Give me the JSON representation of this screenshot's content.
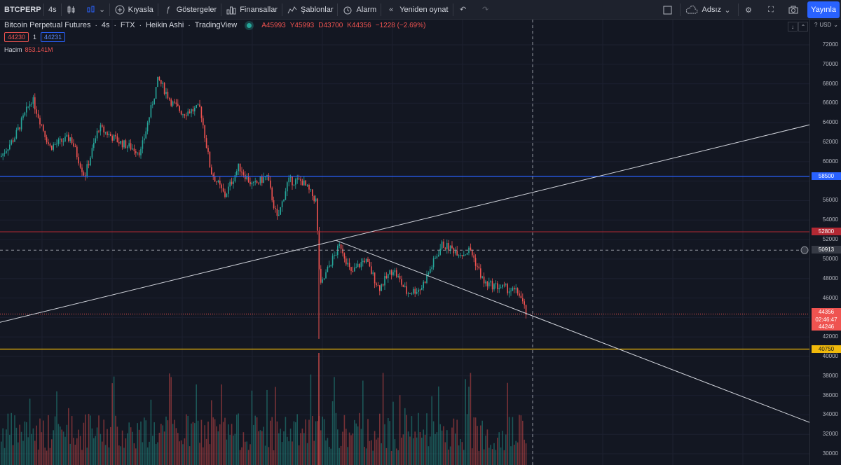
{
  "toolbar": {
    "symbol": "BTCPERP",
    "interval": "4s",
    "compare": "Kıyasla",
    "indicators": "Göstergeler",
    "financials": "Finansallar",
    "templates": "Şablonlar",
    "alarm": "Alarm",
    "replay": "Yeniden oynat",
    "layout_name": "Adsız",
    "publish": "Yayınla"
  },
  "legend": {
    "name": "Bitcoin Perpetual Futures",
    "interval": "4s",
    "exchange": "FTX",
    "chart_type": "Heikin Ashi",
    "source": "TradingView",
    "open": "A45993",
    "high": "Y45993",
    "low": "D43700",
    "close": "K44356",
    "change": "−1228 (−2.69%)"
  },
  "price_boxes": {
    "sell": "44230",
    "spread": "1",
    "buy": "44231"
  },
  "volume": {
    "label": "Hacim",
    "value": "853.141M"
  },
  "axis": {
    "currency": "USD",
    "ticks": [
      "72000",
      "70000",
      "68000",
      "66000",
      "64000",
      "62000",
      "60000",
      "56000",
      "54000",
      "52000",
      "50000",
      "48000",
      "46000",
      "42000",
      "40000",
      "38000",
      "36000",
      "34000",
      "32000",
      "30000"
    ],
    "badge_blue": "58500",
    "badge_red": "52800",
    "badge_cursor": "50913",
    "badge_last": "44356",
    "badge_countdown": "02:46:47",
    "badge_last2": "44246",
    "badge_yellow": "40750"
  },
  "colors": {
    "up": "#26a69a",
    "down": "#ef5350",
    "hline_blue": "#2962ff",
    "hline_red": "#b22833",
    "hline_yellow": "#f0b90b",
    "trendline": "#d1d4dc"
  }
}
